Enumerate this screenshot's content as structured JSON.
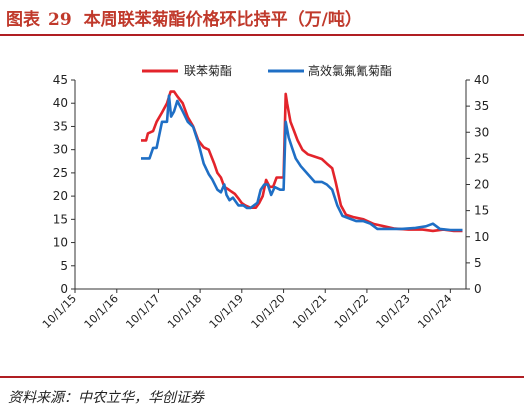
{
  "header": {
    "figure_label": "图表",
    "figure_number": "29",
    "title": "本周联苯菊酯价格环比持平（万/吨）"
  },
  "footer": {
    "source": "资料来源：中农立华，华创证券"
  },
  "colors": {
    "title_red": "#c0392b",
    "rule_red": "#b01e23",
    "series_red": "#e3242b",
    "series_blue": "#1f6fc5"
  },
  "chart_data": {
    "type": "line",
    "x_type": "date",
    "x_ticks": [
      "10/1/15",
      "10/1/16",
      "10/1/17",
      "10/1/18",
      "10/1/19",
      "10/1/20",
      "10/1/21",
      "10/1/22",
      "10/1/23",
      "10/1/24"
    ],
    "x_range": [
      "2015-10-01",
      "2025-02-15"
    ],
    "y_left": {
      "range": [
        0,
        45
      ],
      "ticks": [
        0,
        5,
        10,
        15,
        20,
        25,
        30,
        35,
        40,
        45
      ]
    },
    "y_right": {
      "range": [
        0,
        40
      ],
      "ticks": [
        0,
        5,
        10,
        15,
        20,
        25,
        30,
        35,
        40
      ]
    },
    "grid": false,
    "legend_position": "top",
    "series": [
      {
        "name": "联苯菊酯",
        "axis": "left",
        "color": "#e3242b",
        "points": [
          [
            "2017-05-01",
            32
          ],
          [
            "2017-06-15",
            32
          ],
          [
            "2017-07-01",
            33.5
          ],
          [
            "2017-08-15",
            34
          ],
          [
            "2017-09-15",
            36
          ],
          [
            "2017-11-01",
            38
          ],
          [
            "2017-12-15",
            40
          ],
          [
            "2018-01-15",
            42.5
          ],
          [
            "2018-02-15",
            42.5
          ],
          [
            "2018-03-15",
            41.5
          ],
          [
            "2018-05-01",
            40
          ],
          [
            "2018-06-15",
            37
          ],
          [
            "2018-08-01",
            35
          ],
          [
            "2018-09-15",
            32
          ],
          [
            "2018-11-01",
            30.5
          ],
          [
            "2018-12-15",
            30
          ],
          [
            "2019-02-01",
            27
          ],
          [
            "2019-03-01",
            25
          ],
          [
            "2019-04-01",
            24
          ],
          [
            "2019-05-01",
            22
          ],
          [
            "2019-06-01",
            21.5
          ],
          [
            "2019-07-01",
            21
          ],
          [
            "2019-08-01",
            20.5
          ],
          [
            "2019-09-01",
            19.5
          ],
          [
            "2019-10-01",
            18.5
          ],
          [
            "2019-11-01",
            18
          ],
          [
            "2019-12-15",
            17.5
          ],
          [
            "2020-02-01",
            17.5
          ],
          [
            "2020-03-01",
            18.5
          ],
          [
            "2020-04-01",
            20
          ],
          [
            "2020-05-01",
            23.5
          ],
          [
            "2020-06-01",
            22
          ],
          [
            "2020-07-01",
            22
          ],
          [
            "2020-08-01",
            24
          ],
          [
            "2020-09-01",
            24
          ],
          [
            "2020-10-01",
            24
          ],
          [
            "2020-10-20",
            42
          ],
          [
            "2020-11-01",
            40
          ],
          [
            "2020-12-01",
            36
          ],
          [
            "2021-01-01",
            34
          ],
          [
            "2021-02-01",
            32
          ],
          [
            "2021-03-15",
            30
          ],
          [
            "2021-05-01",
            29
          ],
          [
            "2021-07-01",
            28.5
          ],
          [
            "2021-09-01",
            28
          ],
          [
            "2021-10-15",
            27
          ],
          [
            "2021-12-01",
            26
          ],
          [
            "2022-01-01",
            23
          ],
          [
            "2022-02-15",
            18
          ],
          [
            "2022-04-01",
            16
          ],
          [
            "2022-06-01",
            15.5
          ],
          [
            "2022-09-01",
            15
          ],
          [
            "2022-12-01",
            14
          ],
          [
            "2023-03-01",
            13.5
          ],
          [
            "2023-06-01",
            13
          ],
          [
            "2023-10-01",
            12.8
          ],
          [
            "2024-02-01",
            12.8
          ],
          [
            "2024-05-01",
            12.5
          ],
          [
            "2024-08-01",
            12.8
          ],
          [
            "2024-11-01",
            12.5
          ],
          [
            "2025-01-15",
            12.5
          ]
        ]
      },
      {
        "name": "高效氯氟氰菊酯",
        "axis": "right",
        "color": "#1f6fc5",
        "points": [
          [
            "2017-05-01",
            25
          ],
          [
            "2017-07-15",
            25
          ],
          [
            "2017-08-15",
            27
          ],
          [
            "2017-09-15",
            27
          ],
          [
            "2017-11-01",
            32
          ],
          [
            "2017-12-15",
            32
          ],
          [
            "2018-01-01",
            37
          ],
          [
            "2018-01-20",
            33
          ],
          [
            "2018-02-15",
            34
          ],
          [
            "2018-03-15",
            36
          ],
          [
            "2018-05-01",
            34
          ],
          [
            "2018-06-15",
            32
          ],
          [
            "2018-08-01",
            31
          ],
          [
            "2018-09-15",
            28
          ],
          [
            "2018-11-01",
            24
          ],
          [
            "2018-12-15",
            22
          ],
          [
            "2019-01-15",
            21
          ],
          [
            "2019-03-01",
            19
          ],
          [
            "2019-04-01",
            18.5
          ],
          [
            "2019-05-01",
            20
          ],
          [
            "2019-05-20",
            18
          ],
          [
            "2019-06-15",
            17
          ],
          [
            "2019-07-15",
            17.5
          ],
          [
            "2019-09-01",
            16
          ],
          [
            "2019-10-15",
            16
          ],
          [
            "2019-11-15",
            15.5
          ],
          [
            "2019-12-15",
            15.5
          ],
          [
            "2020-02-15",
            16.5
          ],
          [
            "2020-03-15",
            19
          ],
          [
            "2020-04-15",
            20
          ],
          [
            "2020-05-15",
            20
          ],
          [
            "2020-06-15",
            18
          ],
          [
            "2020-07-15",
            19.5
          ],
          [
            "2020-09-01",
            19
          ],
          [
            "2020-10-01",
            19
          ],
          [
            "2020-10-20",
            32
          ],
          [
            "2020-11-15",
            29
          ],
          [
            "2020-12-15",
            27
          ],
          [
            "2021-01-15",
            25
          ],
          [
            "2021-03-01",
            23.5
          ],
          [
            "2021-05-01",
            22
          ],
          [
            "2021-07-01",
            20.5
          ],
          [
            "2021-09-01",
            20.5
          ],
          [
            "2021-10-15",
            20
          ],
          [
            "2021-12-01",
            19
          ],
          [
            "2022-01-15",
            16
          ],
          [
            "2022-03-01",
            14
          ],
          [
            "2022-05-01",
            13.5
          ],
          [
            "2022-07-01",
            13
          ],
          [
            "2022-09-01",
            13
          ],
          [
            "2022-11-01",
            12.5
          ],
          [
            "2023-01-01",
            11.5
          ],
          [
            "2023-04-01",
            11.5
          ],
          [
            "2023-08-01",
            11.5
          ],
          [
            "2023-12-01",
            11.7
          ],
          [
            "2024-03-01",
            12
          ],
          [
            "2024-05-01",
            12.5
          ],
          [
            "2024-07-01",
            11.5
          ],
          [
            "2024-10-01",
            11.3
          ],
          [
            "2025-01-15",
            11.3
          ]
        ]
      }
    ]
  }
}
